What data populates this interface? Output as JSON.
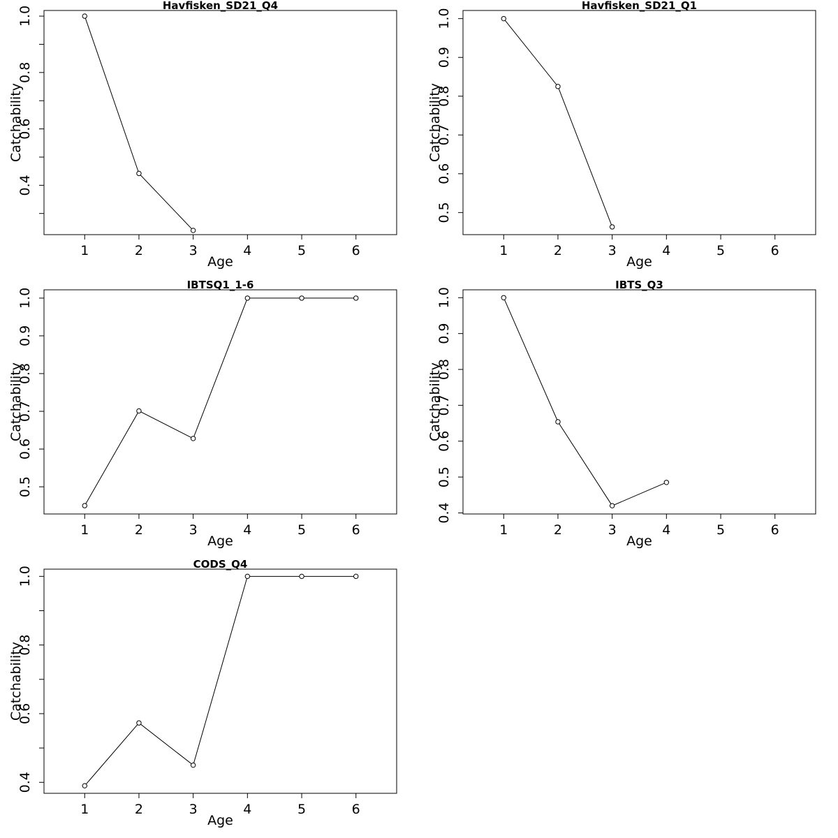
{
  "chart_data": [
    {
      "type": "line",
      "title": "Havfisken_SD21_Q4",
      "xlabel": "Age",
      "ylabel": "Catchability",
      "xlim": [
        0.25,
        6.75
      ],
      "ylim": [
        0.225,
        1.02
      ],
      "xticks": [
        1,
        2,
        3,
        4,
        5,
        6
      ],
      "yticks": [
        0.3,
        0.4,
        0.5,
        0.6,
        0.7,
        0.8,
        0.9,
        1.0
      ],
      "yticklabels": [
        "",
        "0.4",
        "",
        "0.6",
        "",
        "0.8",
        "",
        "1.0"
      ],
      "x": [
        1,
        2,
        3
      ],
      "values": [
        1.0,
        0.442,
        0.24
      ]
    },
    {
      "type": "line",
      "title": "Havfisken_SD21_Q1",
      "xlabel": "Age",
      "ylabel": "Catchability",
      "xlim": [
        0.25,
        6.75
      ],
      "ylim": [
        0.443,
        1.021
      ],
      "xticks": [
        1,
        2,
        3,
        4,
        5,
        6
      ],
      "yticks": [
        0.5,
        0.6,
        0.7,
        0.8,
        0.9,
        1.0
      ],
      "yticklabels": [
        "0.5",
        "0.6",
        "0.7",
        "0.8",
        "0.9",
        "1.0"
      ],
      "x": [
        1,
        2,
        3
      ],
      "values": [
        1.0,
        0.825,
        0.463
      ]
    },
    {
      "type": "line",
      "title": "IBTSQ1_1-6",
      "xlabel": "Age",
      "ylabel": "Catchability",
      "xlim": [
        0.25,
        6.75
      ],
      "ylim": [
        0.428,
        1.022
      ],
      "xticks": [
        1,
        2,
        3,
        4,
        5,
        6
      ],
      "yticks": [
        0.5,
        0.6,
        0.7,
        0.8,
        0.9,
        1.0
      ],
      "yticklabels": [
        "0.5",
        "0.6",
        "0.7",
        "0.8",
        "0.9",
        "1.0"
      ],
      "x": [
        1,
        2,
        3,
        4,
        5,
        6
      ],
      "values": [
        0.45,
        0.701,
        0.628,
        1.0,
        1.0,
        1.0
      ]
    },
    {
      "type": "line",
      "title": "IBTS_Q3",
      "xlabel": "Age",
      "ylabel": "Catchability",
      "xlim": [
        0.25,
        6.75
      ],
      "ylim": [
        0.397,
        1.022
      ],
      "xticks": [
        1,
        2,
        3,
        4,
        5,
        6
      ],
      "yticks": [
        0.4,
        0.5,
        0.6,
        0.7,
        0.8,
        0.9,
        1.0
      ],
      "yticklabels": [
        "0.4",
        "0.5",
        "0.6",
        "0.7",
        "0.8",
        "0.9",
        "1.0"
      ],
      "x": [
        1,
        2,
        3,
        4
      ],
      "values": [
        1.0,
        0.654,
        0.42,
        0.485
      ]
    },
    {
      "type": "line",
      "title": "CODS_Q4",
      "xlabel": "Age",
      "ylabel": "Catchability",
      "xlim": [
        0.25,
        6.75
      ],
      "ylim": [
        0.368,
        1.021
      ],
      "xticks": [
        1,
        2,
        3,
        4,
        5,
        6
      ],
      "yticks": [
        0.4,
        0.5,
        0.6,
        0.7,
        0.8,
        0.9,
        1.0
      ],
      "yticklabels": [
        "0.4",
        "",
        "0.6",
        "",
        "0.8",
        "",
        "1.0"
      ],
      "x": [
        1,
        2,
        3,
        4,
        5,
        6
      ],
      "values": [
        0.39,
        0.573,
        0.45,
        1.0,
        1.0,
        1.0
      ]
    }
  ]
}
